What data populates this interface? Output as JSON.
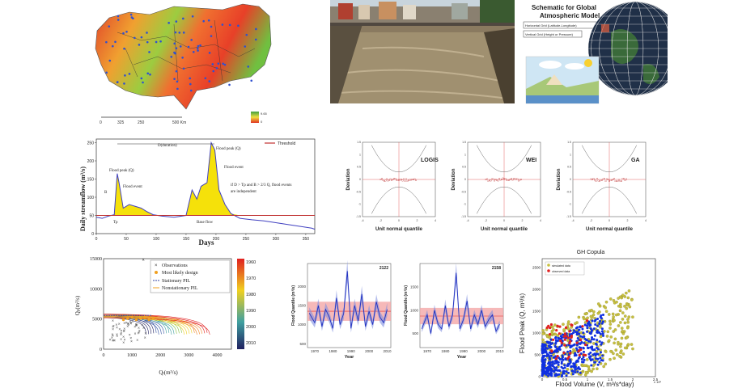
{
  "map": {
    "scale_ticks": [
      "0",
      "325",
      "250",
      "500 Km"
    ],
    "legend_hi": "9.65",
    "legend_lo": "0"
  },
  "globe": {
    "title_line1": "Schematic for Global",
    "title_line2": "Atmospheric Model",
    "grid_h": "Horizontal Grid (Latitude-Longitude)",
    "grid_v": "Vertical Grid (Height or Pressure)"
  },
  "hydro": {
    "ylabel": "Daily streamflow (m³/s)",
    "xlabel": "Days",
    "xticks": [
      "0",
      "50",
      "100",
      "150",
      "200",
      "250",
      "300",
      "350"
    ],
    "yticks": [
      "0",
      "50",
      "100",
      "150",
      "200",
      "250"
    ],
    "legend": "Threshold",
    "duration": "D(duration)",
    "flood_peak_q": "Flood peak (Q)",
    "flood_peak_left": "Flood peak (Q)",
    "flood_event_1": "Flood event",
    "flood_event_2": "Flood event",
    "base_flow": "Base flow",
    "rule_1": "if D > Tp and B > 2/3 Q, flood events",
    "rule_2": "are independent",
    "B": "B",
    "Tp": "Tp",
    "colors": {
      "fill": "#f5e10a",
      "line": "#4040c0",
      "threshold": "#c03030"
    }
  },
  "deviation": {
    "ylabel": "Deviation",
    "xlabel": "Unit normal quantile",
    "xticks": [
      "-4",
      "-2",
      "0",
      "2",
      "4"
    ],
    "yticks": [
      "1.5",
      "1",
      "0.5",
      "0",
      "-0.5",
      "-1",
      "-1.5"
    ],
    "panels": [
      {
        "label": "LOGIS"
      },
      {
        "label": "WEI"
      },
      {
        "label": "GA"
      }
    ]
  },
  "pil": {
    "ylabel": "Q",
    "ylabel_sub": "p",
    "ylabel_unit": "(m³/s)",
    "xlabel": "Q",
    "xlabel_sub": "t",
    "xlabel_unit": "(m³/s)",
    "xticks": [
      "0",
      "1000",
      "2000",
      "3000",
      "4000"
    ],
    "yticks": [
      "15000",
      "10000",
      "5000",
      "0"
    ],
    "legend": [
      "Observations",
      "Most likely design",
      "Stationary PIL",
      "Nonstationary PIL"
    ],
    "colorbar": [
      "1960",
      "1970",
      "1980",
      "1990",
      "2000",
      "2010"
    ]
  },
  "quant": {
    "ylabel": "Flood Quantile (m³/s)",
    "xlabel": "Year",
    "panels": [
      {
        "id": "2122",
        "xticks": [
          "1970",
          "1980",
          "1990",
          "2000",
          "2010"
        ],
        "yticks": [
          "2000",
          "1500",
          "1000",
          "500"
        ]
      },
      {
        "id": "2158",
        "xticks": [
          "1970",
          "1980",
          "1990",
          "2000",
          "2010"
        ],
        "yticks": [
          "1500",
          "1000",
          "500"
        ]
      }
    ]
  },
  "copula": {
    "title": "GH Copula",
    "ylabel": "Flood Peak (Q, m³/s)",
    "xlabel": "Flood Volume (V, m³/s*day)",
    "exponent": "x 10⁵",
    "legend": [
      "simulated data",
      "observed data"
    ],
    "xticks": [
      "0",
      "0.5",
      "1",
      "1.5",
      "2",
      "2.5"
    ],
    "yticks": [
      "0",
      "500",
      "1000",
      "1500",
      "2000",
      "2500"
    ]
  },
  "chart_data": [
    {
      "type": "line",
      "xlabel": "Days",
      "ylabel": "Daily streamflow (m³/s)",
      "x": [
        0,
        10,
        20,
        30,
        35,
        38,
        45,
        55,
        65,
        75,
        85,
        95,
        110,
        130,
        150,
        160,
        168,
        175,
        185,
        192,
        198,
        205,
        215,
        225,
        240,
        260,
        280,
        300,
        320,
        340,
        360,
        365
      ],
      "values": [
        45,
        42,
        48,
        52,
        165,
        140,
        70,
        80,
        75,
        70,
        60,
        52,
        48,
        45,
        50,
        120,
        95,
        130,
        140,
        250,
        230,
        120,
        80,
        55,
        42,
        38,
        35,
        30,
        25,
        20,
        15,
        12
      ],
      "threshold": 50,
      "xlim": [
        0,
        365
      ],
      "ylim": [
        0,
        260
      ],
      "legend": [
        "Threshold"
      ]
    },
    {
      "type": "scatter",
      "title": "",
      "series": [
        {
          "name": "LOGIS"
        },
        {
          "name": "WEI"
        },
        {
          "name": "GA"
        }
      ],
      "xlabel": "Unit normal quantile",
      "ylabel": "Deviation",
      "xlim": [
        -4,
        4
      ],
      "ylim": [
        -1.5,
        1.5
      ]
    },
    {
      "type": "scatter",
      "xlabel": "Qt(m³/s)",
      "ylabel": "Qp(m³/s)",
      "xlim": [
        0,
        4500
      ],
      "ylim": [
        0,
        15000
      ],
      "legend": [
        "Observations",
        "Most likely design",
        "Stationary PIL",
        "Nonstationary PIL"
      ],
      "outlier": {
        "x": 1400,
        "y": 14800
      }
    },
    {
      "type": "line",
      "id": "2122",
      "xlabel": "Year",
      "ylabel": "Flood Quantile (m³/s)",
      "x": [
        1967,
        1970,
        1972,
        1974,
        1976,
        1978,
        1980,
        1982,
        1984,
        1986,
        1988,
        1990,
        1992,
        1994,
        1996,
        1998,
        2000,
        2002,
        2004,
        2006,
        2008,
        2010
      ],
      "values": [
        1300,
        1050,
        1500,
        950,
        1400,
        1200,
        900,
        1700,
        1000,
        1300,
        2400,
        900,
        1500,
        1100,
        1800,
        950,
        1350,
        1000,
        1600,
        1200,
        1050,
        1400
      ],
      "band": [
        1100,
        1600
      ],
      "xlim": [
        1966,
        2012
      ],
      "ylim": [
        400,
        2600
      ]
    },
    {
      "type": "line",
      "id": "2158",
      "xlabel": "Year",
      "ylabel": "Flood Quantile (m³/s)",
      "x": [
        1967,
        1970,
        1972,
        1974,
        1976,
        1978,
        1980,
        1982,
        1984,
        1986,
        1988,
        1990,
        1992,
        1994,
        1996,
        1998,
        2000,
        2002,
        2004,
        2006,
        2008,
        2010
      ],
      "values": [
        600,
        900,
        500,
        1000,
        700,
        600,
        1100,
        650,
        900,
        1800,
        600,
        800,
        1200,
        600,
        900,
        700,
        1000,
        650,
        800,
        900,
        550,
        700
      ],
      "band": [
        700,
        1050
      ],
      "xlim": [
        1966,
        2012
      ],
      "ylim": [
        200,
        2000
      ]
    },
    {
      "type": "scatter",
      "title": "GH Copula",
      "xlabel": "Flood Volume (V, m³/s*day)",
      "ylabel": "Flood Peak (Q, m³/s)",
      "xlim": [
        0,
        2.5
      ],
      "ylim": [
        0,
        2700
      ],
      "legend": [
        "simulated data",
        "observed data"
      ]
    }
  ]
}
